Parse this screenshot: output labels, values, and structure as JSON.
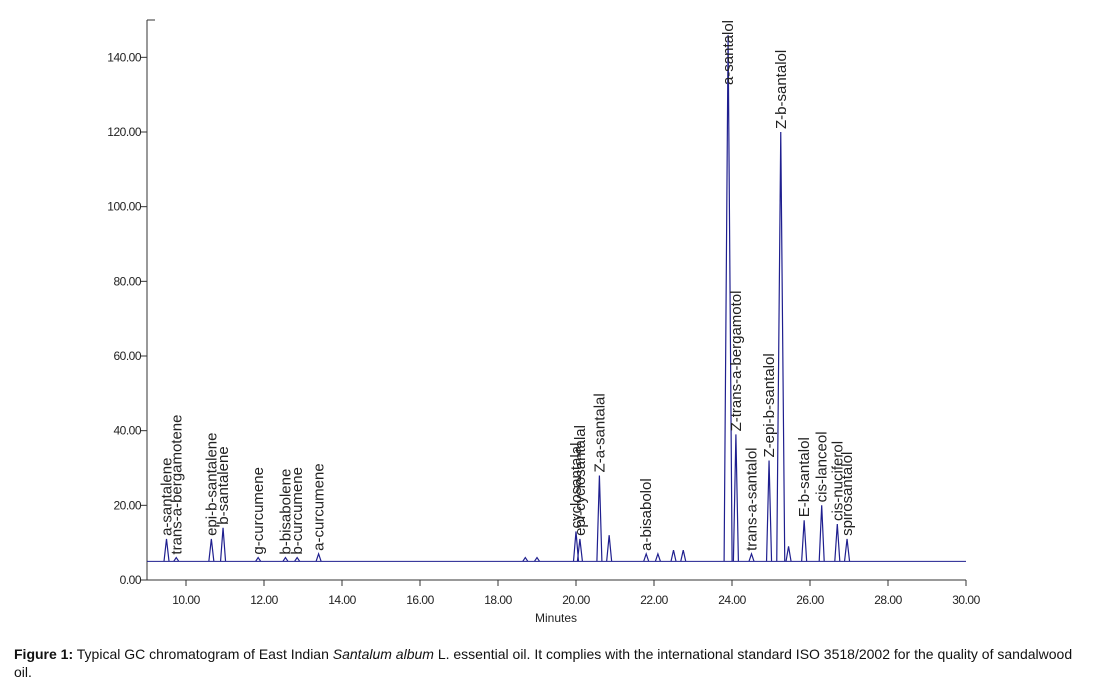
{
  "chart_data": {
    "type": "chromatogram",
    "xlabel": "Minutes",
    "xlim": [
      9,
      30
    ],
    "ylim": [
      0,
      150
    ],
    "xticks": [
      {
        "value": 10,
        "label": "10.00"
      },
      {
        "value": 12,
        "label": "12.00"
      },
      {
        "value": 14,
        "label": "14.00"
      },
      {
        "value": 16,
        "label": "16.00"
      },
      {
        "value": 18,
        "label": "18.00"
      },
      {
        "value": 20,
        "label": "20.00"
      },
      {
        "value": 22,
        "label": "22.00"
      },
      {
        "value": 24,
        "label": "24.00"
      },
      {
        "value": 26,
        "label": "26.00"
      },
      {
        "value": 28,
        "label": "28.00"
      },
      {
        "value": 30,
        "label": "30.00"
      }
    ],
    "yticks": [
      {
        "value": 0,
        "label": "0.00"
      },
      {
        "value": 20,
        "label": "20.00"
      },
      {
        "value": 40,
        "label": "40.00"
      },
      {
        "value": 60,
        "label": "60.00"
      },
      {
        "value": 80,
        "label": "80.00"
      },
      {
        "value": 100,
        "label": "100.00"
      },
      {
        "value": 120,
        "label": "120.00"
      },
      {
        "value": 140,
        "label": "140.00"
      }
    ],
    "baseline": 5,
    "color": "#1f1f8f",
    "peaks": [
      {
        "name": "a-santalene",
        "x": 9.5,
        "y": 11
      },
      {
        "name": "trans-a-bergamotene",
        "x": 9.75,
        "y": 6
      },
      {
        "name": "epi-b-santalene",
        "x": 10.65,
        "y": 11
      },
      {
        "name": "b-santalene",
        "x": 10.95,
        "y": 14
      },
      {
        "name": "g-curcumene",
        "x": 11.85,
        "y": 6
      },
      {
        "name": "b-bisabolene",
        "x": 12.55,
        "y": 6
      },
      {
        "name": "b-curcumene",
        "x": 12.85,
        "y": 6
      },
      {
        "name": "a-curcumene",
        "x": 13.4,
        "y": 7
      },
      {
        "name": null,
        "x": 18.7,
        "y": 6
      },
      {
        "name": null,
        "x": 19.0,
        "y": 6
      },
      {
        "name": "cyclosantalal",
        "x": 20.0,
        "y": 13
      },
      {
        "name": "epi-cyclosantalal",
        "x": 20.1,
        "y": 11
      },
      {
        "name": "Z-a-santalal",
        "x": 20.6,
        "y": 28
      },
      {
        "name": null,
        "x": 20.85,
        "y": 12
      },
      {
        "name": "a-bisabolol",
        "x": 21.8,
        "y": 7
      },
      {
        "name": null,
        "x": 22.1,
        "y": 7
      },
      {
        "name": null,
        "x": 22.5,
        "y": 8
      },
      {
        "name": null,
        "x": 22.75,
        "y": 8
      },
      {
        "name": "a-santalol",
        "x": 23.9,
        "y": 146
      },
      {
        "name": "Z-trans-a-bergamotol",
        "x": 24.1,
        "y": 39
      },
      {
        "name": "trans-a-santalol",
        "x": 24.5,
        "y": 7
      },
      {
        "name": "Z-epi-b-santalol",
        "x": 24.95,
        "y": 32
      },
      {
        "name": "Z-b-santalol",
        "x": 25.25,
        "y": 120
      },
      {
        "name": null,
        "x": 25.45,
        "y": 9
      },
      {
        "name": "E-b-santalol",
        "x": 25.85,
        "y": 16
      },
      {
        "name": "cis-lanceol",
        "x": 26.3,
        "y": 20
      },
      {
        "name": "cis-nuciferol",
        "x": 26.7,
        "y": 15
      },
      {
        "name": "spirosantalol",
        "x": 26.95,
        "y": 11
      }
    ]
  },
  "caption": {
    "label": "Figure 1:",
    "parts": [
      " Typical GC chromatogram of East Indian ",
      "Santalum album",
      " L. essential oil. It complies with the international standard ISO 3518/2002 for the quality of sandalwood oil."
    ]
  }
}
